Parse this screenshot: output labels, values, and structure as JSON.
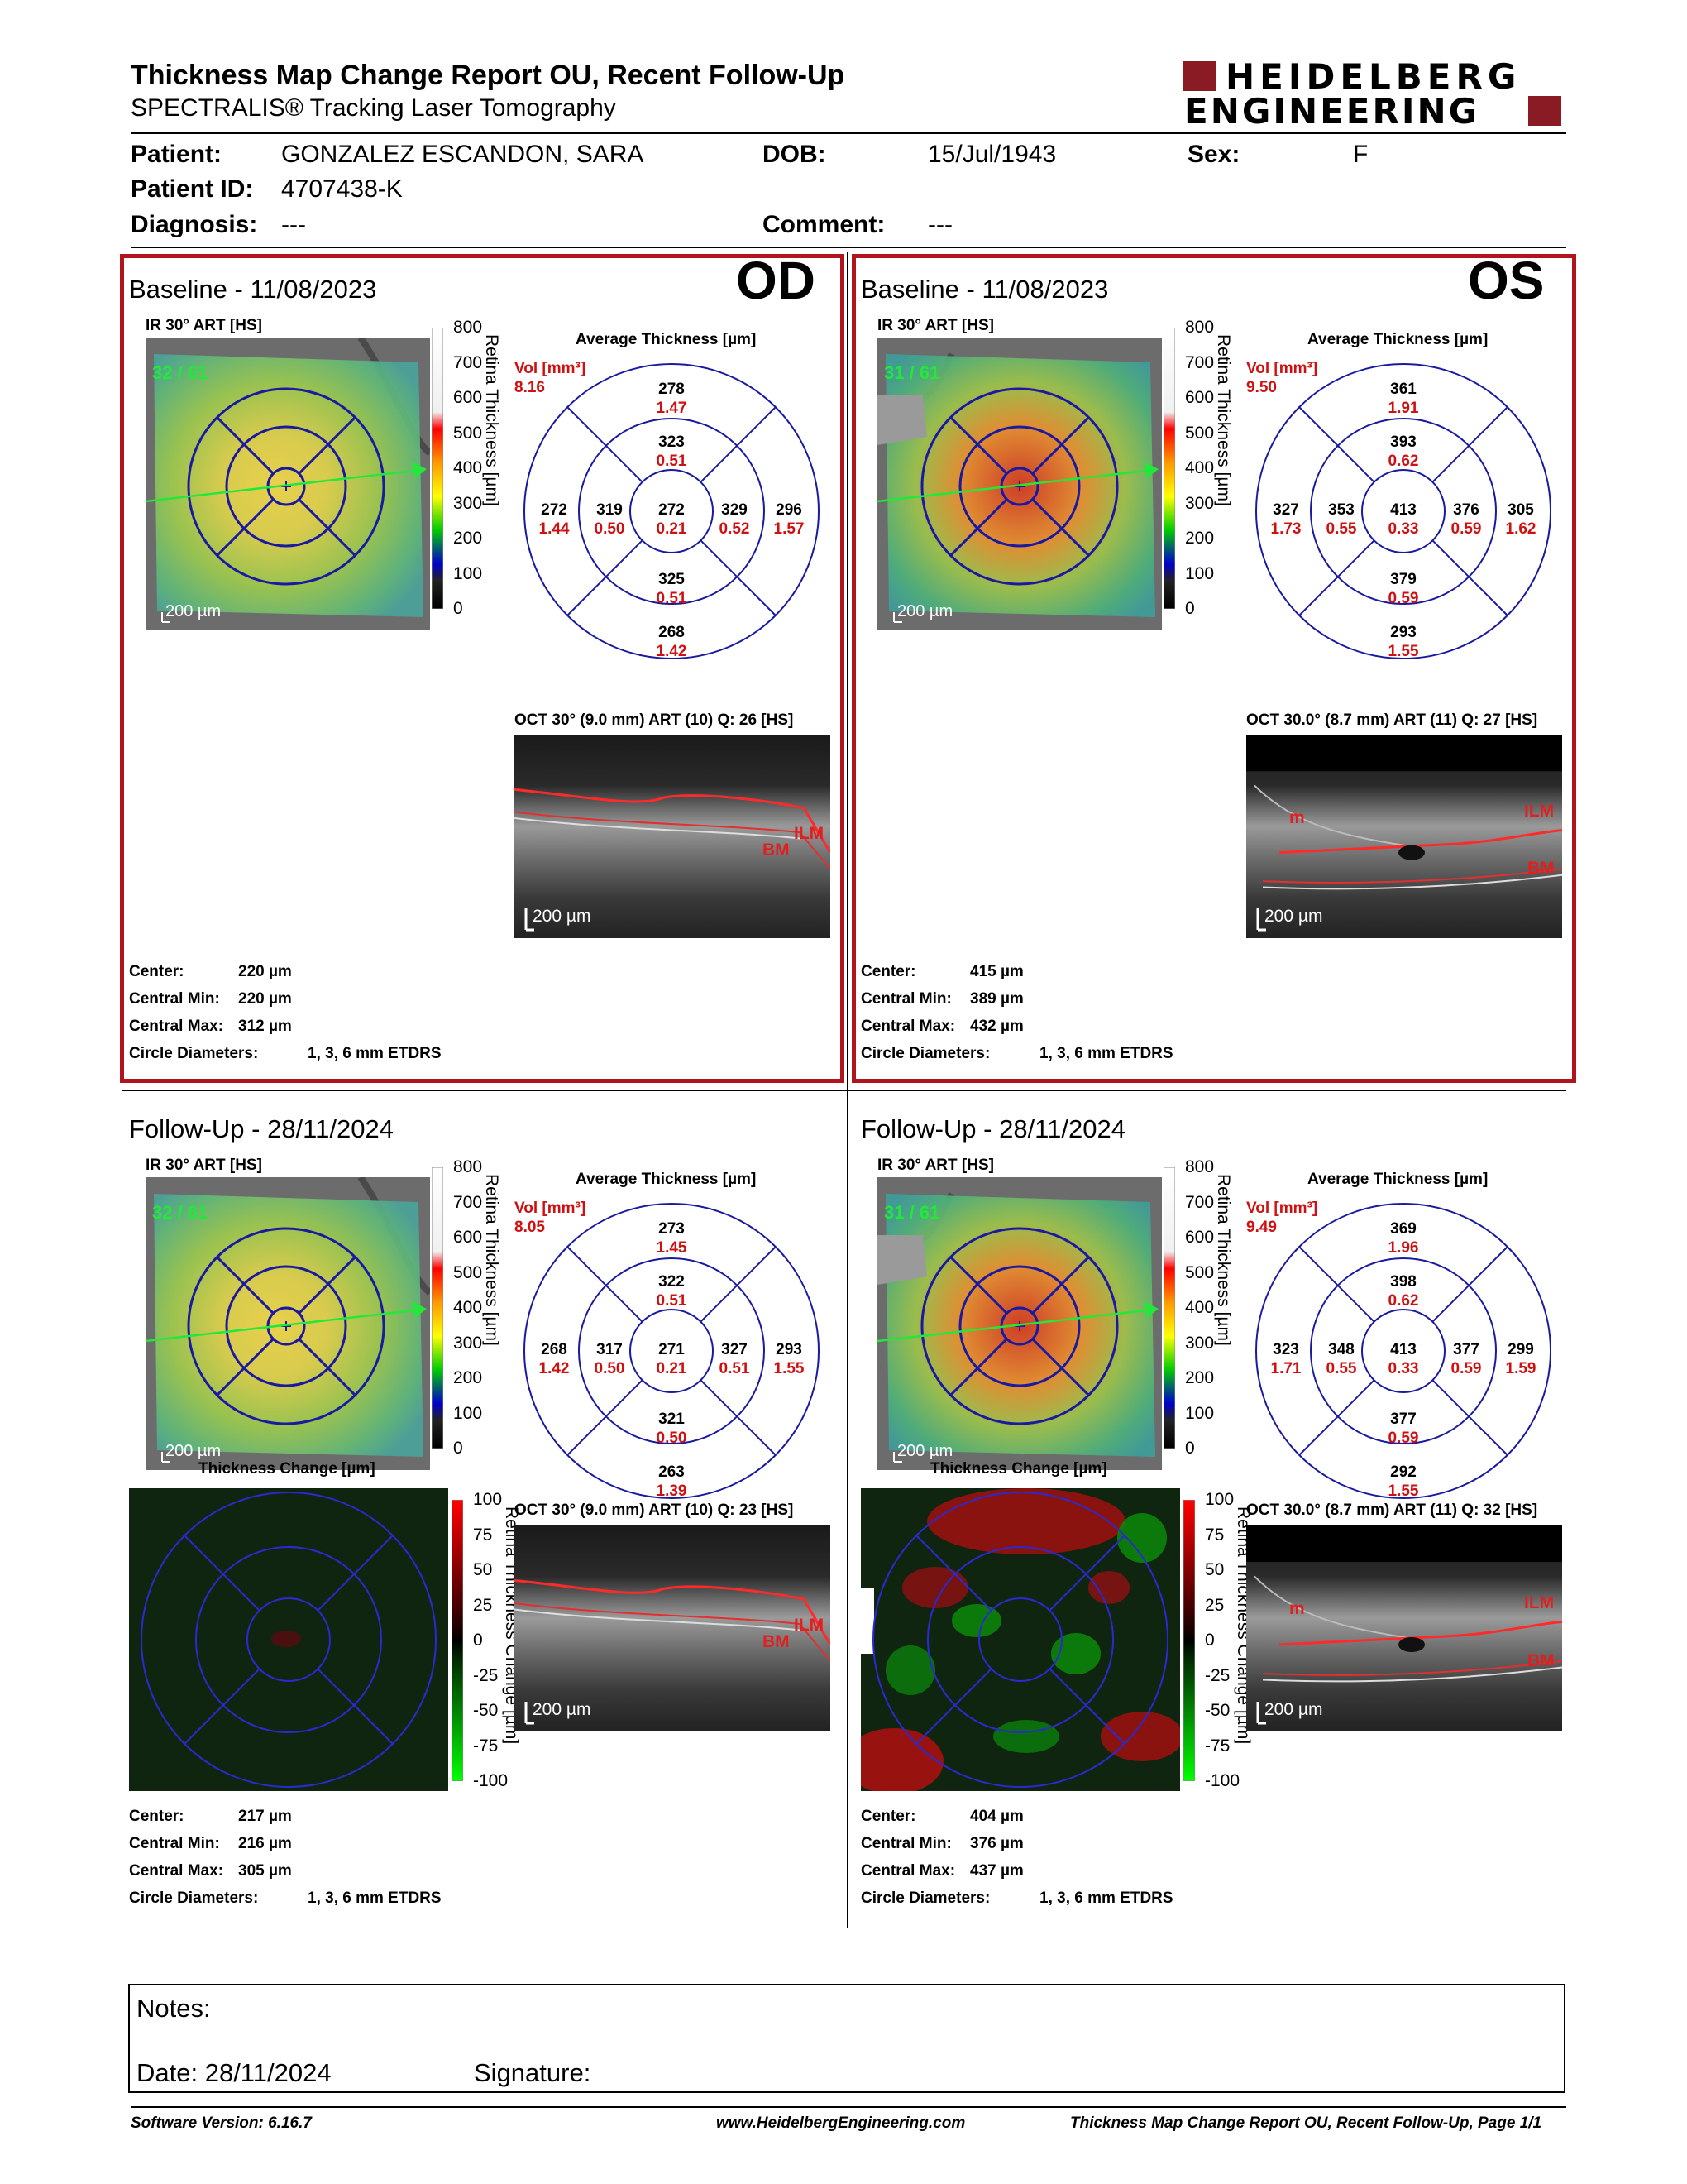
{
  "header": {
    "title": "Thickness Map Change Report OU, Recent Follow-Up",
    "subtitle": "SPECTRALIS® Tracking Laser Tomography",
    "logo_line1": "HEIDELBERG",
    "logo_line2": "ENGINEERING"
  },
  "patient": {
    "patient_label": "Patient:",
    "patient_value": "GONZALEZ ESCANDON, SARA",
    "dob_label": "DOB:",
    "dob_value": "15/Jul/1943",
    "sex_label": "Sex:",
    "sex_value": "F",
    "id_label": "Patient ID:",
    "id_value": "4707438-K",
    "diagnosis_label": "Diagnosis:",
    "diagnosis_value": "---",
    "comment_label": "Comment:",
    "comment_value": "---"
  },
  "common": {
    "ir_label": "IR 30° ART [HS]",
    "avg_label": "Average Thickness [µm]",
    "vol_label": "Vol [mm³]",
    "scale_label": "200 µm",
    "thickness_axis": "Retina Thickness [µm]",
    "change_axis": "Retina Thickness Change [µm]",
    "change_title": "Thickness Change [µm]",
    "center_label": "Center:",
    "cmin_label": "Central Min:",
    "cmax_label": "Central Max:",
    "circle_label": "Circle Diameters:",
    "circle_value": "1, 3, 6 mm ETDRS",
    "thickness_ticks": [
      "800",
      "700",
      "600",
      "500",
      "400",
      "300",
      "200",
      "100",
      "0"
    ],
    "change_ticks": [
      "100",
      "75",
      "50",
      "25",
      "0",
      "-25",
      "-50",
      "-75",
      "-100"
    ],
    "ilm": "ILM",
    "bm": "BM",
    "m": "m"
  },
  "colors": {
    "accent_red": "#b0141c",
    "value_red": "#d01010",
    "grid_blue": "#1a1aa0"
  },
  "panels": {
    "od_base": {
      "title": "Baseline - 11/08/2023",
      "eye": "OD",
      "ir_counter": "32 / 61",
      "vol": "8.16",
      "grid": {
        "top": {
          "t": "278",
          "v": "1.47"
        },
        "in_top": {
          "t": "323",
          "v": "0.51"
        },
        "outer_left": {
          "t": "272",
          "v": "1.44"
        },
        "in_left": {
          "t": "319",
          "v": "0.50"
        },
        "center": {
          "t": "272",
          "v": "0.21"
        },
        "in_right": {
          "t": "329",
          "v": "0.52"
        },
        "outer_right": {
          "t": "296",
          "v": "1.57"
        },
        "in_bottom": {
          "t": "325",
          "v": "0.51"
        },
        "bottom": {
          "t": "268",
          "v": "1.42"
        }
      },
      "oct_label": "OCT 30° (9.0 mm) ART (10) Q: 26 [HS]",
      "center": "220 µm",
      "cmin": "220 µm",
      "cmax": "312 µm"
    },
    "os_base": {
      "title": "Baseline - 11/08/2023",
      "eye": "OS",
      "ir_counter": "31 / 61",
      "vol": "9.50",
      "grid": {
        "top": {
          "t": "361",
          "v": "1.91"
        },
        "in_top": {
          "t": "393",
          "v": "0.62"
        },
        "outer_left": {
          "t": "327",
          "v": "1.73"
        },
        "in_left": {
          "t": "353",
          "v": "0.55"
        },
        "center": {
          "t": "413",
          "v": "0.33"
        },
        "in_right": {
          "t": "376",
          "v": "0.59"
        },
        "outer_right": {
          "t": "305",
          "v": "1.62"
        },
        "in_bottom": {
          "t": "379",
          "v": "0.59"
        },
        "bottom": {
          "t": "293",
          "v": "1.55"
        }
      },
      "oct_label": "OCT 30.0° (8.7 mm) ART (11) Q: 27 [HS]",
      "center": "415 µm",
      "cmin": "389 µm",
      "cmax": "432 µm"
    },
    "od_fu": {
      "title": "Follow-Up - 28/11/2024",
      "ir_counter": "32 / 61",
      "vol": "8.05",
      "grid": {
        "top": {
          "t": "273",
          "v": "1.45"
        },
        "in_top": {
          "t": "322",
          "v": "0.51"
        },
        "outer_left": {
          "t": "268",
          "v": "1.42"
        },
        "in_left": {
          "t": "317",
          "v": "0.50"
        },
        "center": {
          "t": "271",
          "v": "0.21"
        },
        "in_right": {
          "t": "327",
          "v": "0.51"
        },
        "outer_right": {
          "t": "293",
          "v": "1.55"
        },
        "in_bottom": {
          "t": "321",
          "v": "0.50"
        },
        "bottom": {
          "t": "263",
          "v": "1.39"
        }
      },
      "oct_label": "OCT 30° (9.0 mm) ART (10) Q: 23 [HS]",
      "center": "217 µm",
      "cmin": "216 µm",
      "cmax": "305 µm"
    },
    "os_fu": {
      "title": "Follow-Up - 28/11/2024",
      "ir_counter": "31 / 61",
      "vol": "9.49",
      "grid": {
        "top": {
          "t": "369",
          "v": "1.96"
        },
        "in_top": {
          "t": "398",
          "v": "0.62"
        },
        "outer_left": {
          "t": "323",
          "v": "1.71"
        },
        "in_left": {
          "t": "348",
          "v": "0.55"
        },
        "center": {
          "t": "413",
          "v": "0.33"
        },
        "in_right": {
          "t": "377",
          "v": "0.59"
        },
        "outer_right": {
          "t": "299",
          "v": "1.59"
        },
        "in_bottom": {
          "t": "377",
          "v": "0.59"
        },
        "bottom": {
          "t": "292",
          "v": "1.55"
        }
      },
      "oct_label": "OCT 30.0° (8.7 mm) ART (11) Q: 32 [HS]",
      "center": "404 µm",
      "cmin": "376 µm",
      "cmax": "437 µm"
    }
  },
  "notes": {
    "notes_label": "Notes:",
    "date_label": "Date: 28/11/2024",
    "signature_label": "Signature:"
  },
  "footer": {
    "software": "Software Version: 6.16.7",
    "website": "www.HeidelbergEngineering.com",
    "page": "Thickness Map Change Report OU, Recent Follow-Up, Page 1/1"
  }
}
